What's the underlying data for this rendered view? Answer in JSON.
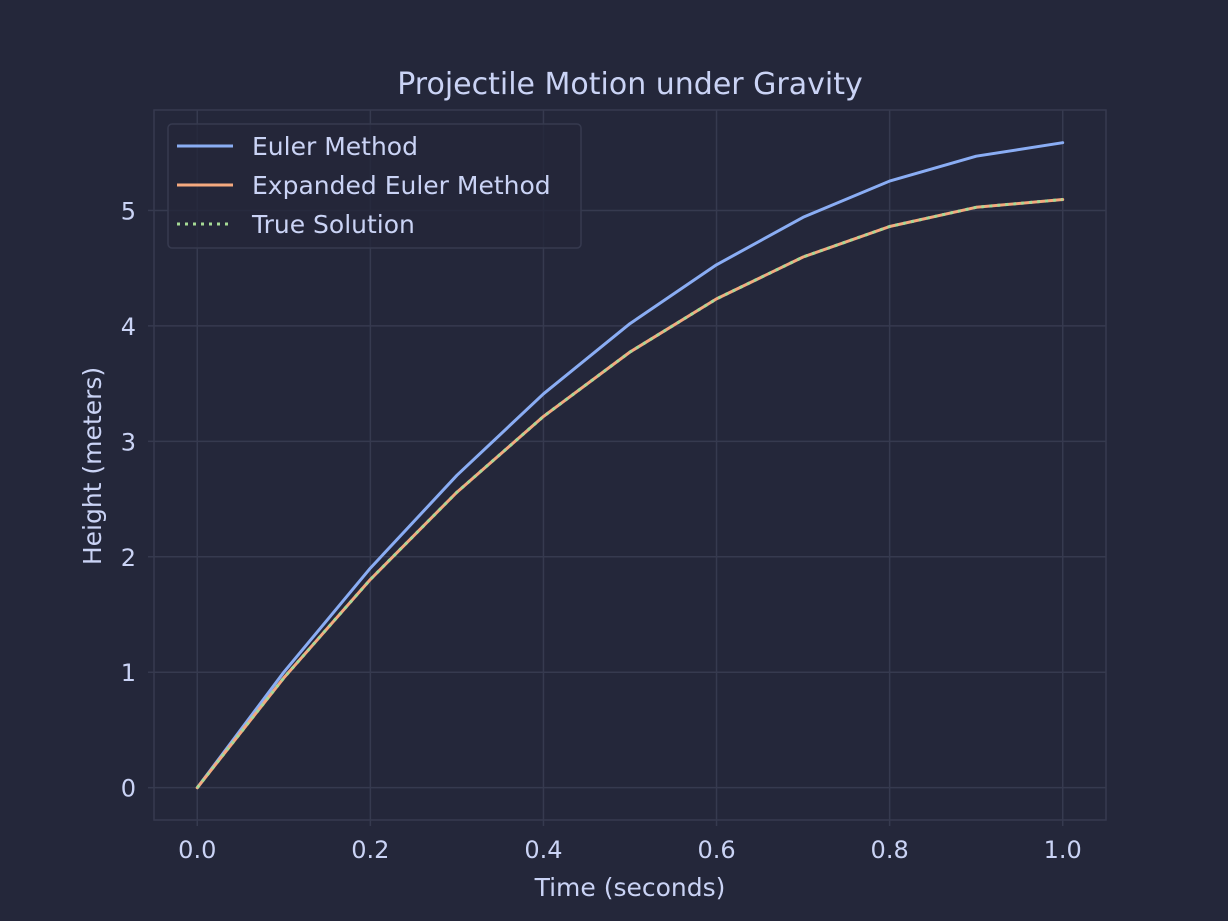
{
  "chart_data": {
    "type": "line",
    "title": "Projectile Motion under Gravity",
    "xlabel": "Time (seconds)",
    "ylabel": "Height (meters)",
    "x": [
      0.0,
      0.1,
      0.2,
      0.3,
      0.4,
      0.5,
      0.6,
      0.7,
      0.8,
      0.9,
      1.0
    ],
    "series": [
      {
        "name": "Euler Method",
        "color": "#8aadf4",
        "style": "solid",
        "values": [
          0.0,
          1.0,
          1.902,
          2.706,
          3.412,
          4.02,
          4.529,
          4.941,
          5.254,
          5.47,
          5.587
        ]
      },
      {
        "name": "Expanded Euler Method",
        "color": "#f5a97f",
        "style": "solid",
        "values": [
          0.0,
          0.951,
          1.804,
          2.559,
          3.216,
          3.774,
          4.234,
          4.597,
          4.861,
          5.027,
          5.095
        ]
      },
      {
        "name": "True Solution",
        "color": "#a6da95",
        "style": "dotted",
        "values": [
          0.0,
          0.951,
          1.804,
          2.559,
          3.216,
          3.774,
          4.234,
          4.597,
          4.861,
          5.027,
          5.095
        ]
      }
    ],
    "xlim": [
      -0.05,
      1.05
    ],
    "ylim": [
      -0.28,
      5.87
    ],
    "xticks": [
      "0.0",
      "0.2",
      "0.4",
      "0.6",
      "0.8",
      "1.0"
    ],
    "yticks": [
      "0",
      "1",
      "2",
      "3",
      "4",
      "5"
    ],
    "grid": true,
    "legend_position": "top-left",
    "colors": {
      "background": "#24273a",
      "grid": "#363a4f",
      "text": "#cad3f5"
    }
  }
}
